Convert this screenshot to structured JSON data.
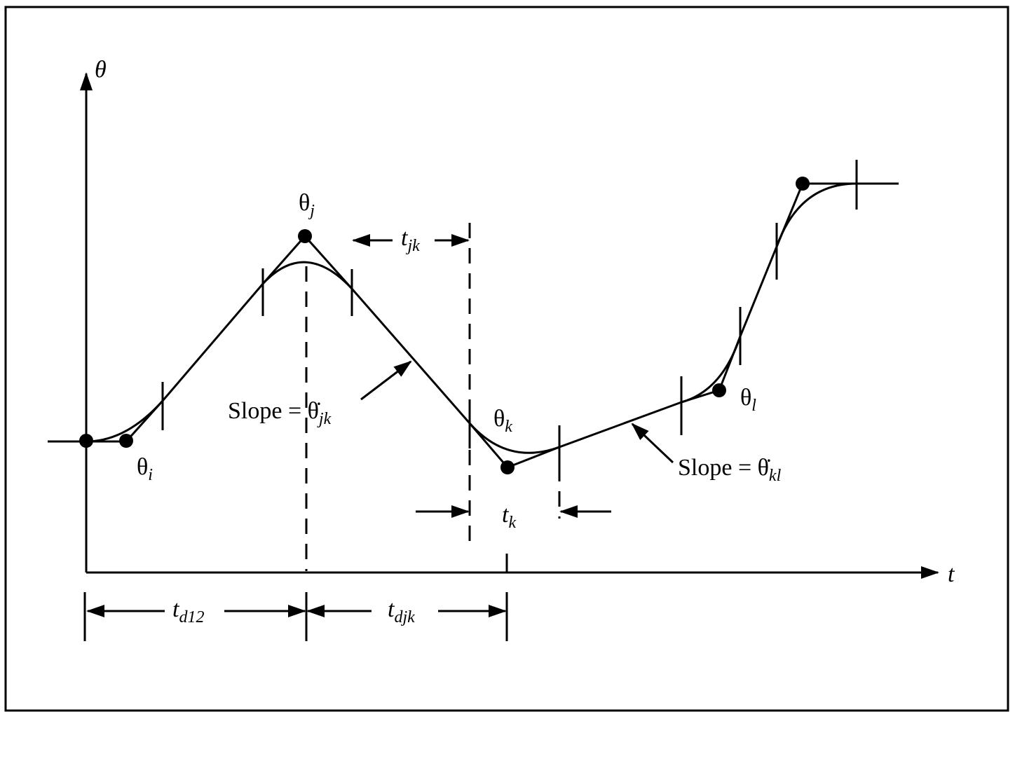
{
  "axes": {
    "y_label": "θ",
    "x_label": "t"
  },
  "points": [
    {
      "base": "θ",
      "sub": "i"
    },
    {
      "base": "θ",
      "sub": "j"
    },
    {
      "base": "θ",
      "sub": "k"
    },
    {
      "base": "θ",
      "sub": "l"
    }
  ],
  "intervals": [
    {
      "base": "t",
      "sub": "jk"
    },
    {
      "base": "t",
      "sub": "k"
    },
    {
      "base": "t",
      "sub": "d12"
    },
    {
      "base": "t",
      "sub": "djk"
    }
  ],
  "slopes": [
    {
      "prefix": "Slope = ",
      "base": "θ̇",
      "sub": "jk"
    },
    {
      "prefix": "Slope = ",
      "base": "θ̇",
      "sub": "kl"
    }
  ]
}
